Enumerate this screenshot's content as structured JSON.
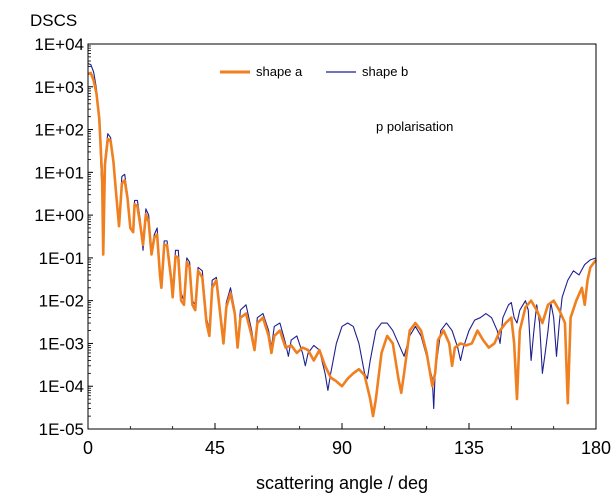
{
  "chart_data": {
    "type": "line",
    "title": "DSCS",
    "xlabel": "scattering angle / deg",
    "ylabel": "",
    "y_scale": "log",
    "xlim": [
      0,
      180
    ],
    "ylim": [
      1e-05,
      10000
    ],
    "x_ticks": [
      0,
      45,
      90,
      135,
      180
    ],
    "x_tick_labels": [
      "0",
      "45",
      "90",
      "135",
      "180"
    ],
    "y_ticks": [
      1e-05,
      0.0001,
      0.001,
      0.01,
      0.1,
      1,
      10,
      100,
      1000,
      10000
    ],
    "y_tick_labels": [
      "1E-05",
      "1E-04",
      "1E-03",
      "1E-02",
      "1E-01",
      "1E+00",
      "1E+01",
      "1E+02",
      "1E+03",
      "1E+04"
    ],
    "grid": false,
    "legend_position": "top-center",
    "annotation": "p polarisation",
    "series": [
      {
        "name": "shape a",
        "color": "#f07f1f",
        "points": [
          [
            0,
            2000
          ],
          [
            1,
            2100
          ],
          [
            2,
            1400
          ],
          [
            3,
            700
          ],
          [
            4,
            180
          ],
          [
            5,
            8
          ],
          [
            5.4,
            0.12
          ],
          [
            6,
            15
          ],
          [
            7,
            60
          ],
          [
            8,
            55
          ],
          [
            9,
            18
          ],
          [
            10,
            3
          ],
          [
            11,
            0.55
          ],
          [
            12,
            5.5
          ],
          [
            13,
            6.5
          ],
          [
            14,
            2.5
          ],
          [
            15,
            0.5
          ],
          [
            16,
            0.4
          ],
          [
            16.5,
            1.8
          ],
          [
            17.5,
            1.6
          ],
          [
            18.5,
            0.6
          ],
          [
            19.5,
            0.2
          ],
          [
            20.5,
            1.05
          ],
          [
            21.5,
            0.7
          ],
          [
            22.5,
            0.12
          ],
          [
            23.5,
            0.3
          ],
          [
            24.5,
            0.35
          ],
          [
            25.5,
            0.04
          ],
          [
            26,
            0.02
          ],
          [
            27,
            0.2
          ],
          [
            28,
            0.2
          ],
          [
            29.5,
            0.03
          ],
          [
            30,
            0.012
          ],
          [
            31,
            0.11
          ],
          [
            32,
            0.1
          ],
          [
            33,
            0.01
          ],
          [
            34,
            0.008
          ],
          [
            35,
            0.08
          ],
          [
            36,
            0.06
          ],
          [
            37,
            0.008
          ],
          [
            38,
            0.006
          ],
          [
            39,
            0.05
          ],
          [
            40.5,
            0.035
          ],
          [
            42,
            0.003
          ],
          [
            43,
            0.0015
          ],
          [
            44,
            0.02
          ],
          [
            45.5,
            0.03
          ],
          [
            47,
            0.004
          ],
          [
            48,
            0.001
          ],
          [
            49,
            0.007
          ],
          [
            50.5,
            0.015
          ],
          [
            52,
            0.005
          ],
          [
            53,
            0.0008
          ],
          [
            54,
            0.004
          ],
          [
            56,
            0.005
          ],
          [
            58,
            0.0015
          ],
          [
            59,
            0.0007
          ],
          [
            60,
            0.003
          ],
          [
            62,
            0.004
          ],
          [
            64,
            0.0015
          ],
          [
            65,
            0.0006
          ],
          [
            66,
            0.0015
          ],
          [
            68,
            0.002
          ],
          [
            70,
            0.0008
          ],
          [
            72,
            0.0009
          ],
          [
            74,
            0.0006
          ],
          [
            76,
            0.0008
          ],
          [
            78,
            0.0007
          ],
          [
            80,
            0.0004
          ],
          [
            82,
            0.0007
          ],
          [
            84,
            0.0003
          ],
          [
            86,
            0.00016
          ],
          [
            88,
            0.00013
          ],
          [
            90,
            0.0001
          ],
          [
            92,
            0.00015
          ],
          [
            94,
            0.0002
          ],
          [
            96,
            0.00025
          ],
          [
            98,
            0.00018
          ],
          [
            100,
            5e-05
          ],
          [
            101,
            2e-05
          ],
          [
            102,
            5e-05
          ],
          [
            104,
            0.0006
          ],
          [
            106,
            0.0015
          ],
          [
            108,
            0.001
          ],
          [
            110,
            0.00015
          ],
          [
            111,
            7e-05
          ],
          [
            112,
            0.0002
          ],
          [
            114,
            0.002
          ],
          [
            116,
            0.003
          ],
          [
            118,
            0.002
          ],
          [
            120,
            0.0006
          ],
          [
            122,
            0.0001
          ],
          [
            123,
            0.0002
          ],
          [
            124,
            0.0012
          ],
          [
            126,
            0.002
          ],
          [
            128,
            0.001
          ],
          [
            129,
            0.0003
          ],
          [
            130,
            0.0008
          ],
          [
            132,
            0.001
          ],
          [
            134,
            0.0009
          ],
          [
            136,
            0.001
          ],
          [
            138,
            0.002
          ],
          [
            140,
            0.0012
          ],
          [
            142,
            0.0008
          ],
          [
            144,
            0.001
          ],
          [
            146,
            0.002
          ],
          [
            148,
            0.003
          ],
          [
            150,
            0.004
          ],
          [
            151,
            0.001
          ],
          [
            152,
            5e-05
          ],
          [
            153,
            0.002
          ],
          [
            155,
            0.007
          ],
          [
            157,
            0.01
          ],
          [
            159,
            0.006
          ],
          [
            161,
            0.003
          ],
          [
            163,
            0.008
          ],
          [
            165,
            0.01
          ],
          [
            167,
            0.006
          ],
          [
            169,
            0.003
          ],
          [
            170,
            4e-05
          ],
          [
            171,
            0.004
          ],
          [
            173,
            0.01
          ],
          [
            175,
            0.02
          ],
          [
            176,
            0.008
          ],
          [
            177,
            0.03
          ],
          [
            178,
            0.06
          ],
          [
            180,
            0.09
          ]
        ]
      },
      {
        "name": "shape b",
        "color": "#1f1f8f",
        "points": [
          [
            0,
            3500
          ],
          [
            1,
            3300
          ],
          [
            2,
            2200
          ],
          [
            3,
            900
          ],
          [
            4,
            120
          ],
          [
            5,
            3
          ],
          [
            5.4,
            0.5
          ],
          [
            6,
            20
          ],
          [
            7,
            80
          ],
          [
            8,
            65
          ],
          [
            9,
            20
          ],
          [
            10,
            3
          ],
          [
            11,
            0.7
          ],
          [
            12,
            8
          ],
          [
            13,
            9
          ],
          [
            14,
            3
          ],
          [
            15,
            0.5
          ],
          [
            16,
            0.45
          ],
          [
            16.5,
            2.2
          ],
          [
            17.5,
            2.2
          ],
          [
            18.5,
            0.8
          ],
          [
            19.5,
            0.15
          ],
          [
            20.5,
            1.4
          ],
          [
            21.5,
            1
          ],
          [
            22.5,
            0.15
          ],
          [
            23.5,
            0.35
          ],
          [
            24.5,
            0.5
          ],
          [
            25.5,
            0.05
          ],
          [
            26,
            0.02
          ],
          [
            27,
            0.25
          ],
          [
            28,
            0.25
          ],
          [
            29.5,
            0.04
          ],
          [
            30,
            0.015
          ],
          [
            31,
            0.15
          ],
          [
            32,
            0.15
          ],
          [
            33,
            0.015
          ],
          [
            34,
            0.01
          ],
          [
            35,
            0.1
          ],
          [
            36,
            0.08
          ],
          [
            37,
            0.01
          ],
          [
            38,
            0.008
          ],
          [
            39,
            0.06
          ],
          [
            40.5,
            0.05
          ],
          [
            42,
            0.004
          ],
          [
            43,
            0.002
          ],
          [
            44,
            0.03
          ],
          [
            45.5,
            0.035
          ],
          [
            47,
            0.005
          ],
          [
            48,
            0.0015
          ],
          [
            49,
            0.009
          ],
          [
            50.5,
            0.02
          ],
          [
            52,
            0.006
          ],
          [
            53,
            0.001
          ],
          [
            54,
            0.006
          ],
          [
            56,
            0.008
          ],
          [
            58,
            0.002
          ],
          [
            59,
            0.0008
          ],
          [
            60,
            0.004
          ],
          [
            62,
            0.005
          ],
          [
            64,
            0.002
          ],
          [
            65,
            0.0008
          ],
          [
            66,
            0.0025
          ],
          [
            68,
            0.003
          ],
          [
            70,
            0.001
          ],
          [
            71,
            0.0005
          ],
          [
            72,
            0.0012
          ],
          [
            74,
            0.0015
          ],
          [
            76,
            0.0006
          ],
          [
            77,
            0.0003
          ],
          [
            78,
            0.0006
          ],
          [
            80,
            0.0009
          ],
          [
            82,
            0.0007
          ],
          [
            84,
            0.0002
          ],
          [
            85,
            8e-05
          ],
          [
            86,
            0.0002
          ],
          [
            88,
            0.001
          ],
          [
            90,
            0.0025
          ],
          [
            92,
            0.003
          ],
          [
            94,
            0.0025
          ],
          [
            96,
            0.001
          ],
          [
            98,
            0.0002
          ],
          [
            99,
            0.00015
          ],
          [
            100,
            0.0004
          ],
          [
            102,
            0.002
          ],
          [
            104,
            0.003
          ],
          [
            106,
            0.003
          ],
          [
            108,
            0.002
          ],
          [
            110,
            0.001
          ],
          [
            112,
            0.0005
          ],
          [
            114,
            0.0015
          ],
          [
            116,
            0.0025
          ],
          [
            118,
            0.0015
          ],
          [
            120,
            0.0005
          ],
          [
            122,
            0.00015
          ],
          [
            122.5,
            3e-05
          ],
          [
            123,
            0.0002
          ],
          [
            125,
            0.002
          ],
          [
            127,
            0.003
          ],
          [
            129,
            0.002
          ],
          [
            131,
            0.0008
          ],
          [
            132,
            0.0004
          ],
          [
            133,
            0.0008
          ],
          [
            135,
            0.002
          ],
          [
            137,
            0.0035
          ],
          [
            139,
            0.004
          ],
          [
            141,
            0.005
          ],
          [
            143,
            0.004
          ],
          [
            145,
            0.002
          ],
          [
            146,
            0.001
          ],
          [
            147,
            0.004
          ],
          [
            149,
            0.008
          ],
          [
            150,
            0.009
          ],
          [
            151,
            0.004
          ],
          [
            152,
            0.003
          ],
          [
            153,
            0.006
          ],
          [
            155,
            0.01
          ],
          [
            156,
            0.006
          ],
          [
            157,
            0.0004
          ],
          [
            158,
            0.002
          ],
          [
            159,
            0.008
          ],
          [
            160,
            0.003
          ],
          [
            161,
            0.0002
          ],
          [
            162,
            0.0006
          ],
          [
            163,
            0.002
          ],
          [
            164,
            0.009
          ],
          [
            165,
            0.004
          ],
          [
            166,
            0.0005
          ],
          [
            167,
            0.003
          ],
          [
            168,
            0.012
          ],
          [
            170,
            0.03
          ],
          [
            172,
            0.05
          ],
          [
            174,
            0.04
          ],
          [
            176,
            0.07
          ],
          [
            178,
            0.09
          ],
          [
            180,
            0.1
          ]
        ]
      }
    ]
  }
}
